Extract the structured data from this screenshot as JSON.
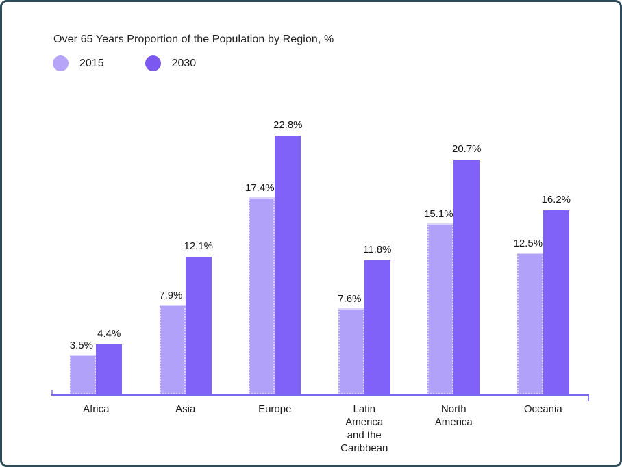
{
  "page": {
    "background": "#ffffff",
    "border_color": "#2e4c59"
  },
  "legend": {
    "items": [
      {
        "label": "2015",
        "color": "#b5a4f7"
      },
      {
        "label": "2030",
        "color": "#7b59f1"
      }
    ]
  },
  "chart_data": {
    "type": "bar",
    "title": "Over 65 Years Proportion of the Population by Region, %",
    "categories": [
      "Africa",
      "Asia",
      "Europe",
      "Latin\nAmerica\nand the\nCaribbean",
      "North\nAmerica",
      "Oceania"
    ],
    "series": [
      {
        "name": "2015",
        "color": "#b2a1f8",
        "values": [
          3.5,
          7.9,
          17.4,
          7.6,
          15.1,
          12.5
        ]
      },
      {
        "name": "2030",
        "color": "#8062f8",
        "values": [
          4.4,
          12.1,
          22.8,
          11.8,
          20.7,
          16.2
        ]
      }
    ],
    "value_suffix": "%",
    "data_labels": true,
    "ylim": [
      0,
      24
    ],
    "grid": false,
    "y_axis_visible": false,
    "legend_position": "top-left",
    "axis_color": "#7b68f2"
  }
}
